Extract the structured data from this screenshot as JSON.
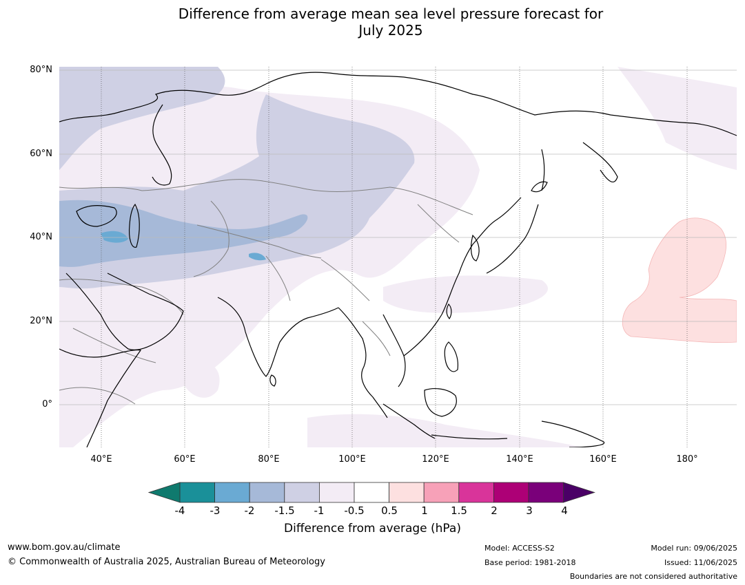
{
  "title": {
    "line1": "Difference from average mean sea level pressure forecast for",
    "line2": "July 2025"
  },
  "map": {
    "lat_labels": [
      "80°N",
      "60°N",
      "40°N",
      "20°N",
      "0°"
    ],
    "lon_labels": [
      "40°E",
      "60°E",
      "80°E",
      "100°E",
      "120°E",
      "140°E",
      "160°E",
      "180°"
    ],
    "land_outline_color": "#000000",
    "border_color": "#808080",
    "grid_color": "#bbbbbb"
  },
  "colorbar": {
    "ticks": [
      "-4",
      "-3",
      "-2",
      "-1.5",
      "-1",
      "-0.5",
      "0.5",
      "1",
      "1.5",
      "2",
      "3",
      "4"
    ],
    "colors": [
      "#0f7a6e",
      "#1a9099",
      "#6aaad3",
      "#a6b9d8",
      "#cfd0e4",
      "#f3ecf5",
      "#ffffff",
      "#fde0e0",
      "#f7a1b8",
      "#d9349a",
      "#ad0076",
      "#7a007a",
      "#4a0066"
    ],
    "label": "Difference from average (hPa)"
  },
  "footer": {
    "website": "www.bom.gov.au/climate",
    "copyright": "© Commonwealth of Australia 2025, Australian Bureau of Meteorology",
    "model": "Model: ACCESS-S2",
    "base_period": "Base period: 1981-2018",
    "model_run": "Model run: 09/06/2025",
    "issued": "Issued: 11/06/2025",
    "disclaimer": "Boundaries are not considered authoritative"
  }
}
